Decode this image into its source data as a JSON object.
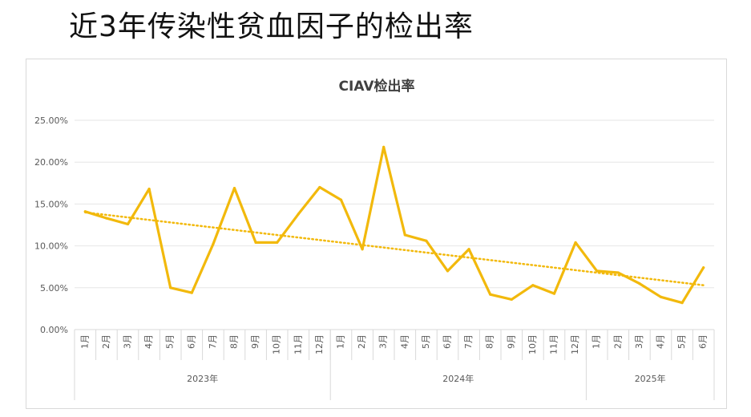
{
  "slide": {
    "title": "近3年传染性贫血因子的检出率"
  },
  "chart_data": {
    "type": "line",
    "title": "CIAV检出率",
    "y_unit": "percent",
    "ylim": [
      0,
      25
    ],
    "yticks": [
      0,
      5,
      10,
      15,
      20,
      25
    ],
    "ytick_labels": [
      "0.00%",
      "5.00%",
      "10.00%",
      "15.00%",
      "20.00%",
      "25.00%"
    ],
    "grid": true,
    "legend": "none",
    "categories": [
      "1月",
      "2月",
      "3月",
      "4月",
      "5月",
      "6月",
      "7月",
      "8月",
      "9月",
      "10月",
      "11月",
      "12月",
      "1月",
      "2月",
      "3月",
      "4月",
      "5月",
      "6月",
      "7月",
      "8月",
      "9月",
      "10月",
      "11月",
      "12月",
      "1月",
      "2月",
      "3月",
      "4月",
      "5月",
      "6月"
    ],
    "groups": [
      {
        "label": "2023年",
        "count": 12
      },
      {
        "label": "2024年",
        "count": 12
      },
      {
        "label": "2025年",
        "count": 6
      }
    ],
    "series": [
      {
        "values": [
          14.1,
          13.3,
          12.6,
          16.8,
          5.0,
          4.4,
          10.2,
          16.9,
          10.4,
          10.4,
          13.8,
          17.0,
          15.5,
          9.6,
          21.8,
          11.3,
          10.6,
          7.0,
          9.6,
          4.2,
          3.6,
          5.3,
          4.3,
          10.4,
          7.0,
          6.8,
          5.5,
          3.9,
          3.2,
          7.4
        ],
        "color": "#f2b90c"
      }
    ],
    "trendline": {
      "type": "linear",
      "start": 14.0,
      "end": 5.3,
      "color": "#f2b90c",
      "style": "dotted"
    }
  }
}
